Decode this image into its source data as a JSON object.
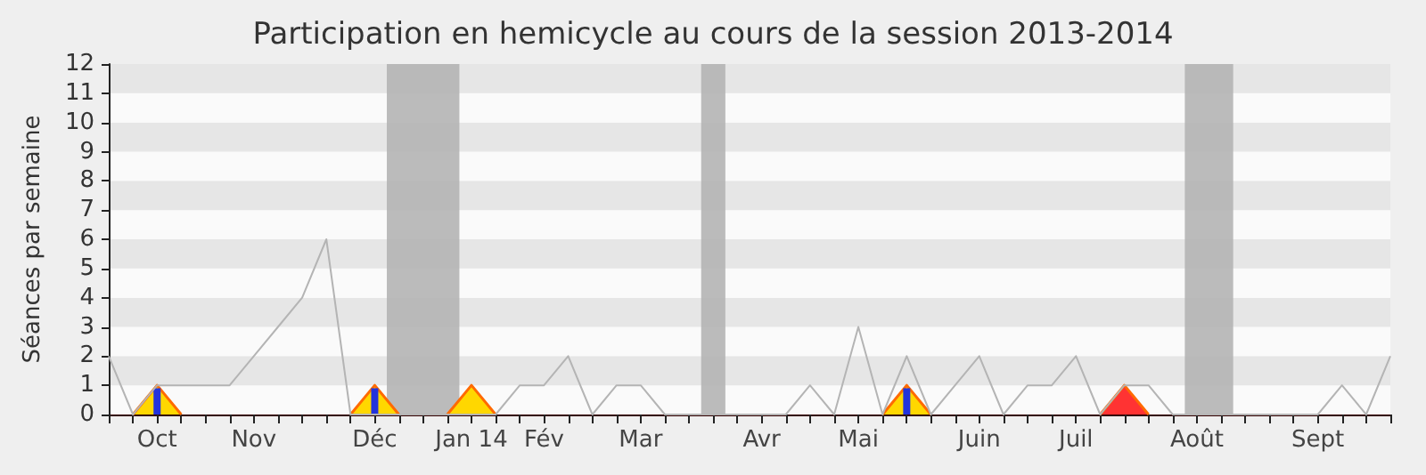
{
  "chart_data": {
    "type": "line",
    "title": "Participation en hemicycle au cours de la session 2013-2014",
    "ylabel": "Séances par semaine",
    "categories": [
      null,
      null,
      "Oct",
      null,
      null,
      null,
      "Nov",
      null,
      null,
      null,
      null,
      "Déc",
      null,
      null,
      null,
      "Jan 14",
      null,
      null,
      "Fév",
      null,
      null,
      null,
      "Mar",
      null,
      null,
      null,
      null,
      "Avr",
      null,
      null,
      null,
      "Mai",
      null,
      null,
      null,
      null,
      "Juin",
      null,
      null,
      null,
      "Juil",
      null,
      null,
      null,
      null,
      "Août",
      null,
      null,
      null,
      null,
      "Sept",
      null,
      null,
      null
    ],
    "series": [
      {
        "type": "area",
        "color": "#ffd700",
        "values": [
          null,
          0,
          1,
          0,
          null,
          null,
          null,
          null,
          null,
          null,
          0,
          1,
          0,
          null,
          0,
          1,
          0,
          null,
          null,
          null,
          null,
          null,
          null,
          null,
          null,
          null,
          null,
          null,
          null,
          null,
          null,
          null,
          0,
          1,
          0,
          null,
          null,
          null,
          null,
          null,
          null,
          null,
          null,
          null,
          null,
          null,
          null,
          null,
          null,
          null,
          null,
          null,
          null,
          null
        ]
      },
      {
        "type": "area",
        "color": "#ff3333",
        "values": [
          null,
          null,
          null,
          null,
          null,
          null,
          null,
          null,
          null,
          null,
          null,
          null,
          null,
          null,
          null,
          null,
          null,
          null,
          null,
          null,
          null,
          null,
          null,
          null,
          null,
          null,
          null,
          null,
          null,
          null,
          null,
          null,
          null,
          null,
          null,
          null,
          null,
          null,
          null,
          null,
          null,
          0,
          1,
          0,
          null,
          null,
          null,
          null,
          null,
          null,
          null,
          null,
          null,
          null
        ]
      },
      {
        "type": "bar",
        "color": "#2233dd",
        "values": [
          null,
          null,
          0.9,
          null,
          null,
          null,
          null,
          null,
          null,
          null,
          null,
          0.9,
          null,
          null,
          null,
          null,
          null,
          null,
          null,
          null,
          null,
          null,
          null,
          null,
          null,
          null,
          null,
          null,
          null,
          null,
          null,
          null,
          null,
          0.9,
          null,
          null,
          null,
          null,
          null,
          null,
          null,
          null,
          null,
          null,
          null,
          null,
          null,
          null,
          null,
          null,
          null,
          null,
          null,
          null
        ]
      },
      {
        "color": "#b4b4b4",
        "values": [
          2,
          0,
          1,
          1,
          1,
          1,
          2,
          3,
          4,
          6,
          0,
          0,
          0,
          0,
          0,
          0,
          0,
          1,
          1,
          2,
          0,
          1,
          1,
          0,
          0,
          0,
          0,
          0,
          0,
          1,
          0,
          3,
          0,
          2,
          0,
          1,
          2,
          0,
          1,
          1,
          2,
          0,
          1,
          1,
          0,
          0,
          0,
          0,
          0,
          0,
          0,
          1,
          0,
          2
        ]
      }
    ],
    "ylim": [
      0,
      12
    ],
    "yticks": [
      0,
      1,
      2,
      3,
      4,
      5,
      6,
      7,
      8,
      9,
      10,
      11,
      12
    ],
    "marker": "none"
  }
}
